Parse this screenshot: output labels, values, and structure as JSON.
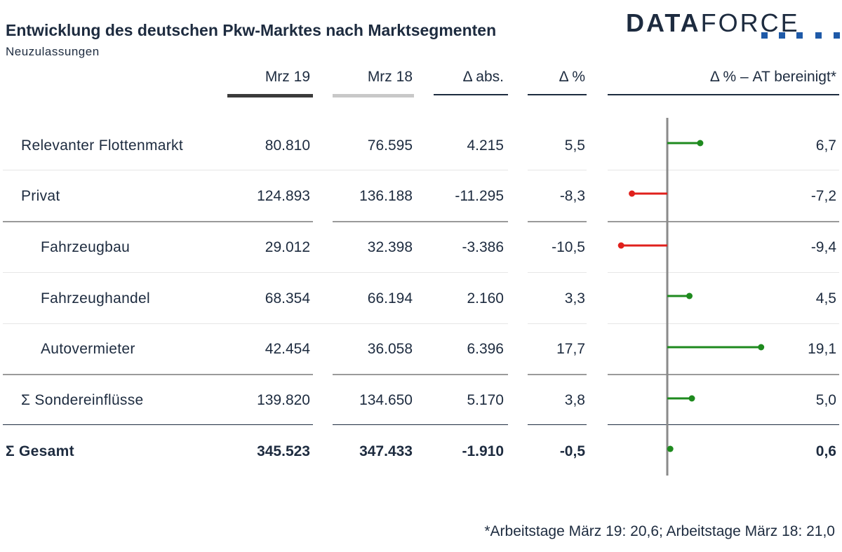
{
  "title": "Entwicklung des deutschen Pkw-Marktes nach Marktsegmenten",
  "subtitle": "Neuzulassungen",
  "logo": {
    "bold": "DATA",
    "light": "FORCE"
  },
  "columns": {
    "mrz19": "Mrz 19",
    "mrz18": "Mrz 18",
    "abs": "Δ abs.",
    "pct": "Δ %",
    "adj": "Δ % – AT bereinigt*"
  },
  "colors": {
    "text": "#1d2b3f",
    "positive": "#1e8a1e",
    "negative": "#e0201c",
    "axis": "#8a8a8a",
    "mrz19_underline": "#3b3b3b",
    "mrz18_underline": "#c8c8c8",
    "logo_squares": "#1f5aa8"
  },
  "rows": [
    {
      "label": "Relevanter Flottenmarkt",
      "mrz19": "80.810",
      "mrz18": "76.595",
      "abs": "4.215",
      "pct": "5,5",
      "adj": "6,7"
    },
    {
      "label": "Privat",
      "mrz19": "124.893",
      "mrz18": "136.188",
      "abs": "-11.295",
      "pct": "-8,3",
      "adj": "-7,2"
    },
    {
      "label": "Fahrzeugbau",
      "mrz19": "29.012",
      "mrz18": "32.398",
      "abs": "-3.386",
      "pct": "-10,5",
      "adj": "-9,4"
    },
    {
      "label": "Fahrzeughandel",
      "mrz19": "68.354",
      "mrz18": "66.194",
      "abs": "2.160",
      "pct": "3,3",
      "adj": "4,5"
    },
    {
      "label": "Autovermieter",
      "mrz19": "42.454",
      "mrz18": "36.058",
      "abs": "6.396",
      "pct": "17,7",
      "adj": "19,1"
    },
    {
      "label": "Σ Sondereinflüsse",
      "mrz19": "139.820",
      "mrz18": "134.650",
      "abs": "5.170",
      "pct": "3,8",
      "adj": "5,0"
    },
    {
      "label": "Σ Gesamt",
      "mrz19": "345.523",
      "mrz18": "347.433",
      "abs": "-1.910",
      "pct": "-0,5",
      "adj": "0,6"
    }
  ],
  "chart_data": {
    "type": "bar",
    "categories": [
      "Relevanter Flottenmarkt",
      "Privat",
      "Fahrzeugbau",
      "Fahrzeughandel",
      "Autovermieter",
      "Σ Sondereinflüsse",
      "Σ Gesamt"
    ],
    "values": [
      6.7,
      -7.2,
      -9.4,
      4.5,
      19.1,
      5.0,
      0.6
    ],
    "title": "Δ % – AT bereinigt*",
    "xlabel": "",
    "ylabel": "",
    "zero_axis": true
  },
  "footnote": "*Arbeitstage März 19: 20,6; Arbeitstage März 18: 21,0"
}
